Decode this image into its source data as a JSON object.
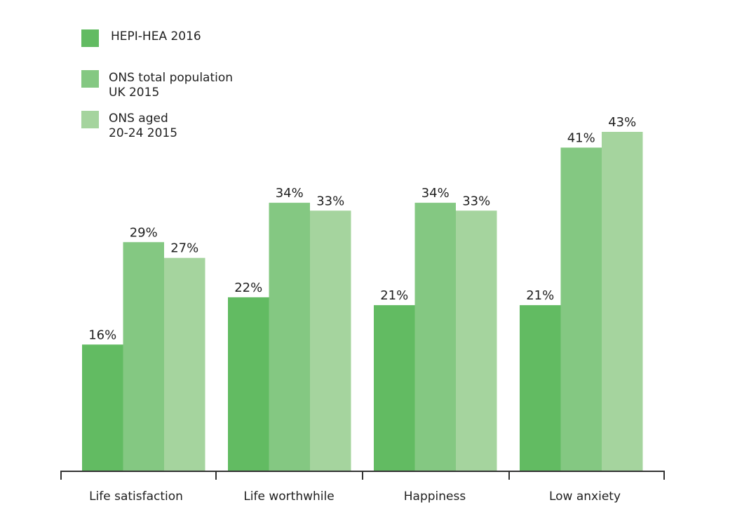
{
  "chart_data": {
    "type": "bar",
    "title": "",
    "xlabel": "",
    "ylabel": "",
    "ylim": [
      0,
      43
    ],
    "grid": false,
    "legend_position": "top-left",
    "categories": [
      "Life satisfaction",
      "Life worthwhile",
      "Happiness",
      "Low anxiety"
    ],
    "series": [
      {
        "name": "HEPI-HEA 2016",
        "legend_lines": [
          "HEPI-HEA 2016"
        ],
        "color": "#62bb62",
        "values": [
          16,
          22,
          21,
          21
        ],
        "labels": [
          "16%",
          "22%",
          "21%",
          "21%"
        ]
      },
      {
        "name": "ONS total population UK 2015",
        "legend_lines": [
          "ONS total population",
          "UK 2015"
        ],
        "color": "#84c882",
        "values": [
          29,
          34,
          34,
          41
        ],
        "labels": [
          "29%",
          "34%",
          "34%",
          "41%"
        ]
      },
      {
        "name": "ONS aged 20-24 2015",
        "legend_lines": [
          "ONS aged",
          "20-24 2015"
        ],
        "color": "#a5d49e",
        "values": [
          27,
          33,
          33,
          43
        ],
        "labels": [
          "27%",
          "33%",
          "33%",
          "43%"
        ]
      }
    ]
  }
}
